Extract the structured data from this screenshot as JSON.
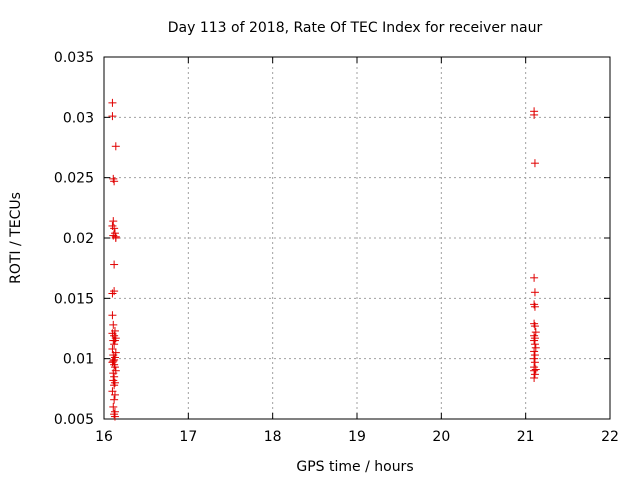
{
  "chart_data": {
    "type": "scatter",
    "title": "Day 113 of 2018, Rate Of TEC Index for receiver naur",
    "xlabel": "GPS time / hours",
    "ylabel": "ROTI / TECUs",
    "xlim": [
      16,
      22
    ],
    "ylim": [
      0.005,
      0.035
    ],
    "xticks": [
      "16",
      "17",
      "18",
      "19",
      "20",
      "21",
      "22"
    ],
    "yticks": [
      "0.005",
      "0.01",
      "0.015",
      "0.02",
      "0.025",
      "0.03",
      "0.035"
    ],
    "grid": true,
    "marker": "plus",
    "marker_color": "#e00000",
    "series": [
      {
        "name": "naur",
        "x": [
          16.1,
          16.1,
          16.14,
          16.11,
          16.12,
          16.11,
          16.1,
          16.12,
          16.13,
          16.14,
          16.11,
          16.14,
          16.12,
          16.12,
          16.1,
          16.1,
          16.11,
          16.13,
          16.1,
          16.12,
          16.14,
          16.13,
          16.11,
          16.12,
          16.1,
          16.14,
          16.11,
          16.13,
          16.12,
          16.11,
          16.1,
          16.12,
          16.13,
          16.14,
          16.11,
          16.12,
          16.11,
          16.13,
          16.12,
          16.1,
          16.13,
          16.12,
          16.11,
          16.13,
          16.12,
          16.13,
          21.1,
          21.1,
          21.11,
          21.1,
          21.11,
          21.1,
          21.11,
          21.1,
          21.11,
          21.12,
          21.1,
          21.11,
          21.1,
          21.11,
          21.12,
          21.1,
          21.11,
          21.1,
          21.11,
          21.1,
          21.12,
          21.1,
          21.11,
          21.1
        ],
        "y": [
          0.0312,
          0.0301,
          0.0276,
          0.0249,
          0.0247,
          0.0214,
          0.021,
          0.0208,
          0.0204,
          0.0201,
          0.0202,
          0.02,
          0.0178,
          0.0156,
          0.0154,
          0.0136,
          0.0128,
          0.0123,
          0.0121,
          0.0119,
          0.0117,
          0.0115,
          0.0115,
          0.0112,
          0.0108,
          0.0105,
          0.0103,
          0.0101,
          0.0099,
          0.0098,
          0.0097,
          0.0095,
          0.0093,
          0.009,
          0.0088,
          0.0085,
          0.0082,
          0.008,
          0.0078,
          0.0073,
          0.007,
          0.0066,
          0.006,
          0.0056,
          0.0054,
          0.0052,
          0.0305,
          0.0302,
          0.0262,
          0.0167,
          0.0155,
          0.0145,
          0.0143,
          0.0129,
          0.0127,
          0.0122,
          0.0119,
          0.0117,
          0.0115,
          0.0112,
          0.0109,
          0.0106,
          0.0103,
          0.01,
          0.0097,
          0.0093,
          0.0091,
          0.009,
          0.0087,
          0.0084
        ]
      }
    ]
  }
}
